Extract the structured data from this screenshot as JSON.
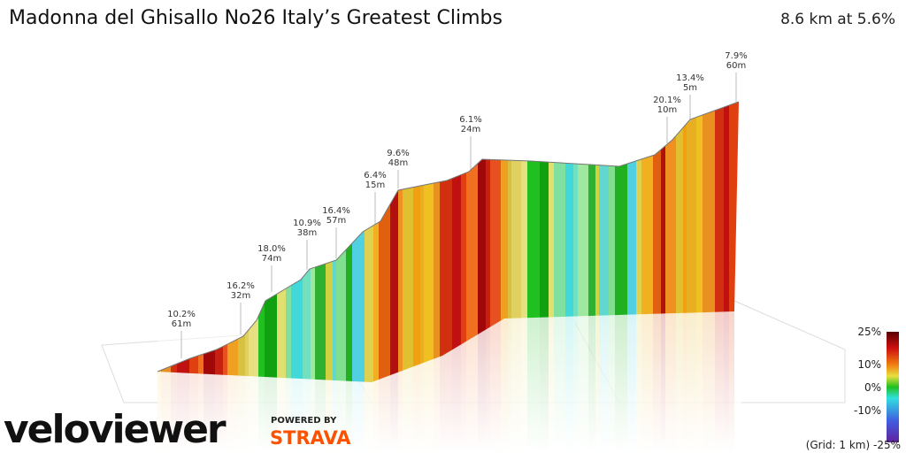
{
  "header": {
    "title": "Madonna del Ghisallo No26 Italy’s Greatest Climbs",
    "summary": "8.6 km at 5.6%"
  },
  "annotations": [
    {
      "gradient": "10.2%",
      "length": "61m"
    },
    {
      "gradient": "16.2%",
      "length": "32m"
    },
    {
      "gradient": "18.0%",
      "length": "74m"
    },
    {
      "gradient": "10.9%",
      "length": "38m"
    },
    {
      "gradient": "16.4%",
      "length": "57m"
    },
    {
      "gradient": "6.4%",
      "length": "15m"
    },
    {
      "gradient": "9.6%",
      "length": "48m"
    },
    {
      "gradient": "6.1%",
      "length": "24m"
    },
    {
      "gradient": "20.1%",
      "length": "10m"
    },
    {
      "gradient": "13.4%",
      "length": "5m"
    },
    {
      "gradient": "7.9%",
      "length": "60m"
    }
  ],
  "legend": {
    "labels": [
      "25%",
      "10%",
      "0%",
      "-10%"
    ],
    "footer": "(Grid: 1 km) -25%"
  },
  "branding": {
    "logo": "veloviewer",
    "powered": "POWERED BY",
    "partner": "STRAVA"
  }
}
